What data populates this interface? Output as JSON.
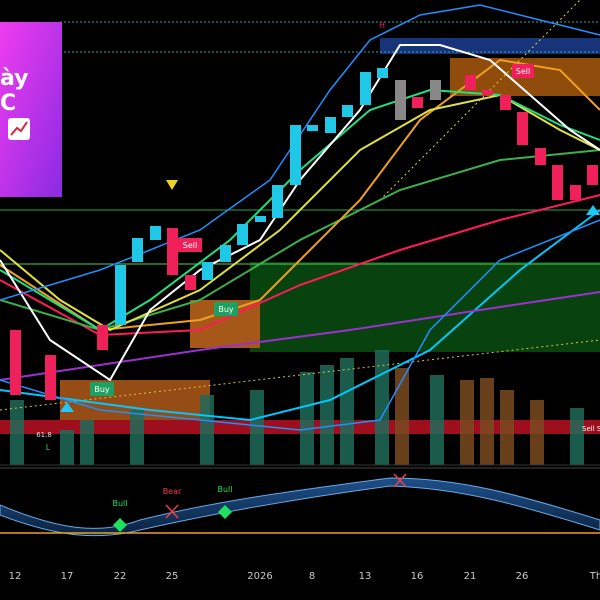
{
  "banner": {
    "line1": "ày",
    "line2": "C"
  },
  "markers": {
    "high": "H",
    "low": "L",
    "fib": "61.8",
    "sell_signal": "Sell S"
  },
  "signals": [
    {
      "label": "Sell"
    },
    {
      "label": "Buy"
    },
    {
      "label": "Buy"
    },
    {
      "label": "Sell"
    }
  ],
  "oscillator": {
    "labels": [
      "Bull",
      "Bear",
      "Bull"
    ]
  },
  "x_axis": {
    "labels": [
      "12",
      "17",
      "22",
      "25",
      "2026",
      "8",
      "13",
      "16",
      "21",
      "26",
      "Th"
    ]
  }
}
